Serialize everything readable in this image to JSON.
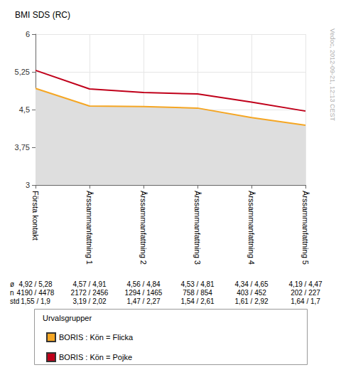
{
  "chart_data": {
    "type": "line",
    "title": "BMI SDS (RC)",
    "categories": [
      "Första kontakt",
      "Årssammanfattning 1",
      "Årssammanfattning 2",
      "Årssammanfattning 3",
      "Årssammanfattning 4",
      "Årssammanfattning 5"
    ],
    "series": [
      {
        "name": "BORIS : Kön = Flicka",
        "type": "area",
        "color": "#f5a623",
        "values": [
          4.92,
          4.57,
          4.56,
          4.53,
          4.34,
          4.19
        ],
        "value_labels": [
          "4,92",
          "4,57",
          "4,56",
          "4,53",
          "4,34",
          "4,19"
        ],
        "n": [
          4190,
          2172,
          1294,
          758,
          403,
          202
        ],
        "std": [
          1.55,
          3.19,
          1.47,
          1.54,
          1.61,
          1.64
        ],
        "std_labels": [
          "1,55",
          "3,19",
          "1,47",
          "1,54",
          "1,61",
          "1,64"
        ]
      },
      {
        "name": "BORIS : Kön = Pojke",
        "type": "line",
        "color": "#c0001a",
        "values": [
          5.28,
          4.91,
          4.84,
          4.81,
          4.65,
          4.47
        ],
        "value_labels": [
          "5,28",
          "4,91",
          "4,84",
          "4,81",
          "4,65",
          "4,47"
        ],
        "n": [
          4478,
          2456,
          1465,
          854,
          452,
          227
        ],
        "std": [
          1.9,
          2.02,
          2.27,
          2.61,
          2.92,
          1.7
        ],
        "std_labels": [
          "1,9",
          "2,02",
          "2,27",
          "2,61",
          "2,92",
          "1,7"
        ]
      }
    ],
    "ylim": [
      3,
      6
    ],
    "yticks": [
      3,
      {
        "value": 3.75,
        "label": "3,75"
      },
      {
        "value": 4.5,
        "label": "4,5"
      },
      {
        "value": 5.25,
        "label": "5,25"
      },
      6
    ],
    "grid": true,
    "legend": "bottom",
    "legend_title": "Urvalsgrupper",
    "table_rows": [
      "ø",
      "n",
      "std"
    ],
    "table_separator": " / ",
    "annotations": [
      "Vedoc, 2012-09-21, 12:13 CEST"
    ]
  }
}
